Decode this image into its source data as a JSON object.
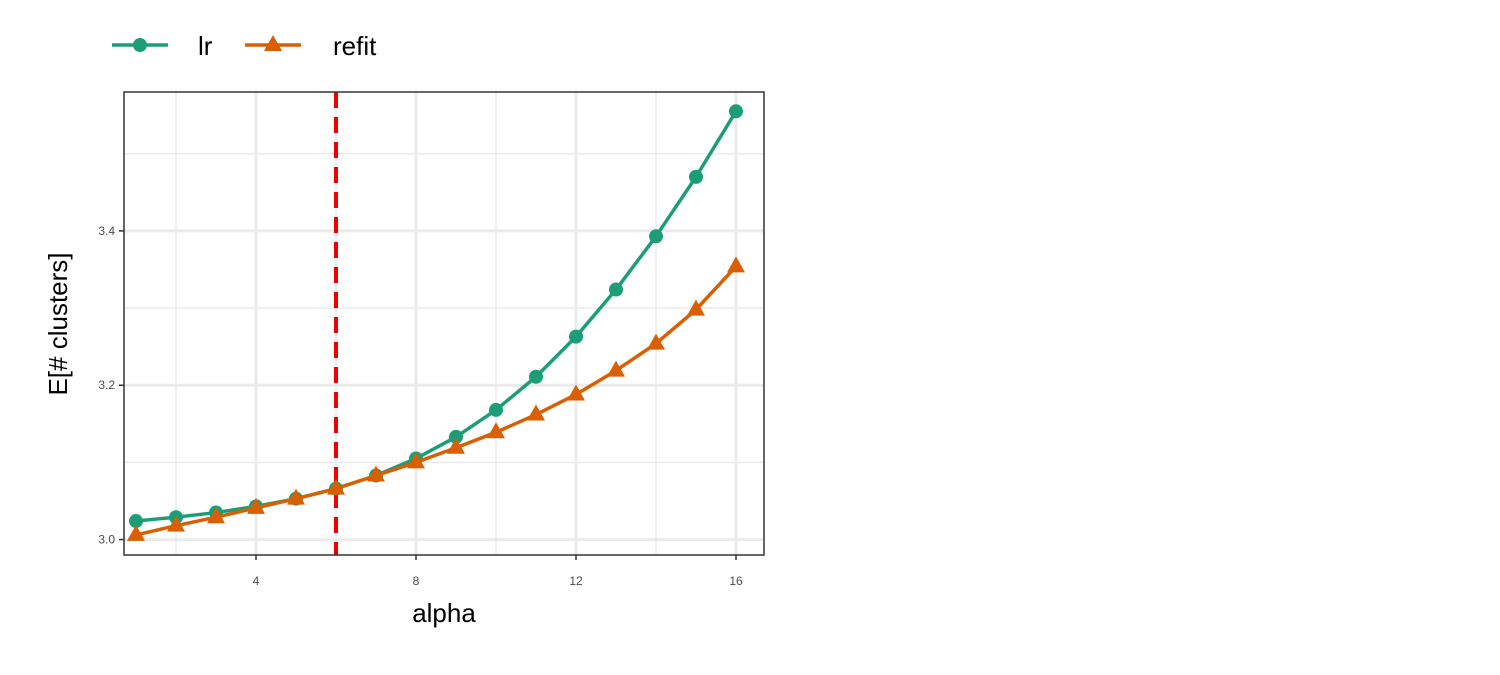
{
  "chart_data": {
    "type": "line",
    "title": "",
    "xlabel": "alpha",
    "ylabel": "E[# clusters]",
    "xlim": [
      0.7,
      16.7
    ],
    "ylim": [
      2.98,
      3.58
    ],
    "x_ticks": [
      4,
      8,
      12,
      16
    ],
    "x_minor_ticks": [
      2,
      6,
      10,
      14
    ],
    "y_ticks": [
      3.0,
      3.2,
      3.4
    ],
    "y_minor_ticks": [
      3.1,
      3.3,
      3.5
    ],
    "y_tick_labels": [
      "3.0",
      "3.2",
      "3.4"
    ],
    "grid": true,
    "legend_position": "top-left",
    "x": [
      1,
      2,
      3,
      4,
      5,
      6,
      7,
      8,
      9,
      10,
      11,
      12,
      13,
      14,
      15,
      16
    ],
    "series": [
      {
        "name": "lr",
        "color": "#1b9e77",
        "marker": "circle",
        "values": [
          3.024,
          3.029,
          3.035,
          3.043,
          3.053,
          3.066,
          3.083,
          3.105,
          3.133,
          3.168,
          3.211,
          3.263,
          3.324,
          3.393,
          3.47,
          3.555
        ]
      },
      {
        "name": "refit",
        "color": "#d95f02",
        "marker": "triangle",
        "values": [
          3.006,
          3.018,
          3.029,
          3.041,
          3.053,
          3.066,
          3.083,
          3.1,
          3.119,
          3.139,
          3.162,
          3.188,
          3.219,
          3.254,
          3.298,
          3.354
        ]
      }
    ],
    "reference_line": {
      "axis": "x",
      "value": 6,
      "color": "#ee0000",
      "style": "dashed"
    }
  }
}
